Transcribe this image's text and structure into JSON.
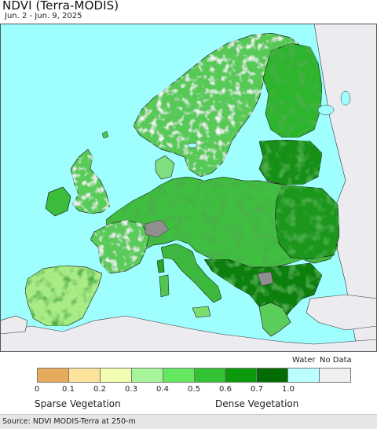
{
  "header": {
    "title": "NDVI (Terra-MODIS)",
    "date_range": "Jun. 2 - Jun. 9, 2025"
  },
  "map": {
    "region": "Europe",
    "colors": {
      "water": "#9fffff",
      "no_data": "#ecebef",
      "land_dense": "#1a8a1a",
      "land_mid": "#4cc24c",
      "land_light": "#9be39b",
      "land_sparse": "#d9f3a8"
    }
  },
  "legend": {
    "water_label": "Water",
    "no_data_label": "No Data",
    "swatches": [
      {
        "color": "#e8ab5e"
      },
      {
        "color": "#fde29b"
      },
      {
        "color": "#f1fdb1"
      },
      {
        "color": "#a7f59a"
      },
      {
        "color": "#63e85f"
      },
      {
        "color": "#33c233"
      },
      {
        "color": "#0c9a0c"
      },
      {
        "color": "#036b03"
      },
      {
        "color": "#baffff"
      },
      {
        "color": "#f1eff1"
      }
    ],
    "ticks": [
      "0",
      "0.1",
      "0.2",
      "0.3",
      "0.4",
      "0.5",
      "0.6",
      "0.7",
      "1.0"
    ],
    "sparse_label": "Sparse Vegetation",
    "dense_label": "Dense Vegetation"
  },
  "footer": {
    "source": "Source: NDVI MODIS-Terra at 250-m"
  }
}
